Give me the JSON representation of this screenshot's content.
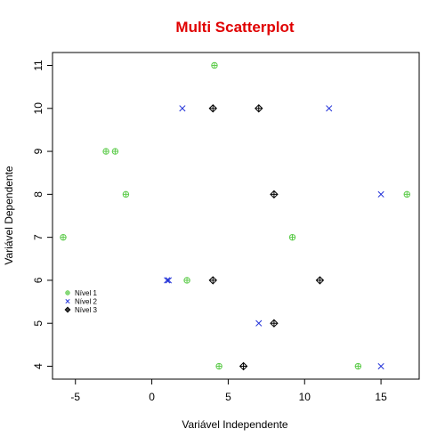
{
  "chart_data": {
    "type": "scatter",
    "title": "Multi Scatterplot",
    "title_color": "#e00000",
    "xlabel": "Variável Independente",
    "ylabel": "Variável Dependente",
    "xlim": [
      -6.5,
      17.5
    ],
    "ylim": [
      3.7,
      11.3
    ],
    "x_ticks": [
      -5,
      0,
      5,
      10,
      15
    ],
    "x_tick_labels": [
      "-5",
      "0",
      "5",
      "10",
      "15"
    ],
    "y_ticks": [
      4,
      5,
      6,
      7,
      8,
      9,
      10,
      11
    ],
    "y_tick_labels": [
      "4",
      "5",
      "6",
      "7",
      "8",
      "9",
      "10",
      "11"
    ],
    "grid": false,
    "legend_position": "left",
    "series": [
      {
        "name": "Nível 1",
        "color": "#5ccb4a",
        "marker": "circle-plus",
        "points": [
          {
            "x": 4.1,
            "y": 11
          },
          {
            "x": -3.0,
            "y": 9
          },
          {
            "x": -2.4,
            "y": 9
          },
          {
            "x": -1.7,
            "y": 8
          },
          {
            "x": 16.7,
            "y": 8
          },
          {
            "x": -5.8,
            "y": 7
          },
          {
            "x": 9.2,
            "y": 7
          },
          {
            "x": 2.3,
            "y": 6
          },
          {
            "x": 4.4,
            "y": 4
          },
          {
            "x": 13.5,
            "y": 4
          }
        ]
      },
      {
        "name": "Nível 2",
        "color": "#1f2fd8",
        "marker": "cross",
        "points": [
          {
            "x": 2.0,
            "y": 10
          },
          {
            "x": 11.6,
            "y": 10
          },
          {
            "x": 15.0,
            "y": 8
          },
          {
            "x": 1.0,
            "y": 6
          },
          {
            "x": 1.1,
            "y": 6
          },
          {
            "x": 7.0,
            "y": 5
          },
          {
            "x": 15.0,
            "y": 4
          }
        ]
      },
      {
        "name": "Nível 3",
        "color": "#000000",
        "marker": "diamond-plus",
        "points": [
          {
            "x": 4.0,
            "y": 10
          },
          {
            "x": 7.0,
            "y": 10
          },
          {
            "x": 8.0,
            "y": 8
          },
          {
            "x": 4.0,
            "y": 6
          },
          {
            "x": 11.0,
            "y": 6
          },
          {
            "x": 8.0,
            "y": 5
          },
          {
            "x": 6.0,
            "y": 4
          }
        ]
      }
    ]
  }
}
